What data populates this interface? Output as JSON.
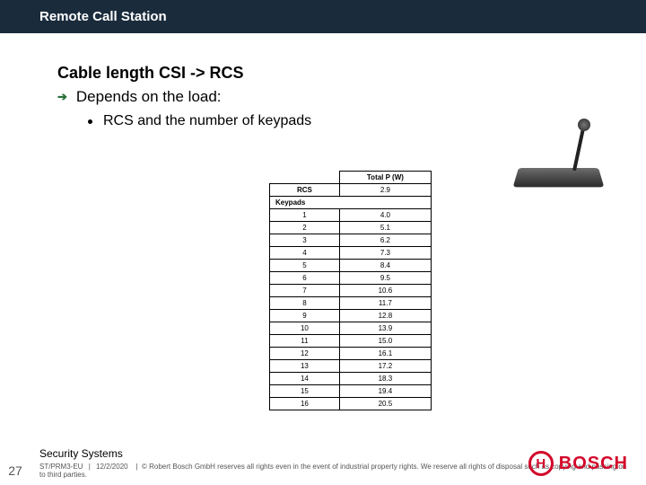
{
  "title_bar": "Remote Call Station",
  "heading": "Cable length CSI -> RCS",
  "sub1": "Depends on the load:",
  "sub2": "RCS and the number of keypads",
  "table": {
    "header_right": "Total P (W)",
    "rcs_label": "RCS",
    "rcs_value": "2.9",
    "keypads_label": "Keypads",
    "rows": [
      {
        "k": "1",
        "v": "4.0"
      },
      {
        "k": "2",
        "v": "5.1"
      },
      {
        "k": "3",
        "v": "6.2"
      },
      {
        "k": "4",
        "v": "7.3"
      },
      {
        "k": "5",
        "v": "8.4"
      },
      {
        "k": "6",
        "v": "9.5"
      },
      {
        "k": "7",
        "v": "10.6"
      },
      {
        "k": "8",
        "v": "11.7"
      },
      {
        "k": "9",
        "v": "12.8"
      },
      {
        "k": "10",
        "v": "13.9"
      },
      {
        "k": "11",
        "v": "15.0"
      },
      {
        "k": "12",
        "v": "16.1"
      },
      {
        "k": "13",
        "v": "17.2"
      },
      {
        "k": "14",
        "v": "18.3"
      },
      {
        "k": "15",
        "v": "19.4"
      },
      {
        "k": "16",
        "v": "20.5"
      }
    ]
  },
  "footer": {
    "label": "Security Systems",
    "page": "27",
    "dept": "ST/PRM3-EU",
    "date": "12/2/2020",
    "copyright": "© Robert Bosch GmbH reserves all rights even in the event of industrial property rights. We reserve all rights of disposal such as copying and passing on to third parties.",
    "brand": "BOSCH"
  },
  "colors": {
    "title_bg": "#1a2b3c",
    "brand": "#d3072a"
  }
}
